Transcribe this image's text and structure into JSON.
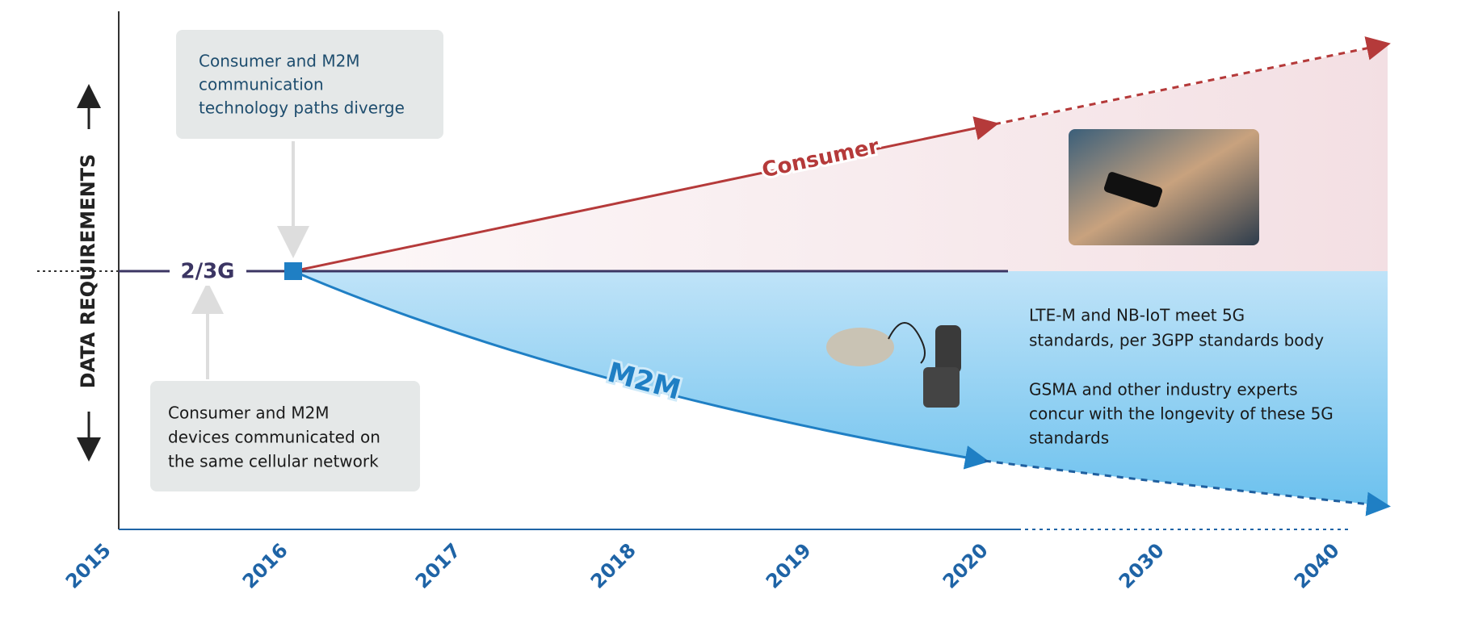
{
  "y_axis_label": "DATA REQUIREMENTS",
  "x_labels": [
    "2015",
    "2016",
    "2017",
    "2018",
    "2019",
    "2020",
    "2030",
    "2040"
  ],
  "baseline_label": "2/3G",
  "consumer_label": "Consumer",
  "m2m_label": "M2M",
  "top_note": [
    "Consumer and M2M",
    "communication",
    "technology paths diverge"
  ],
  "bottom_note": [
    "Consumer and M2M",
    "devices communicated on",
    "the same cellular network"
  ],
  "right_note_1": [
    "LTE-M and NB-IoT meet 5G",
    "standards, per 3GPP standards body"
  ],
  "right_note_2": [
    "GSMA and other industry experts",
    "concur with the longevity of these 5G",
    "standards"
  ]
}
